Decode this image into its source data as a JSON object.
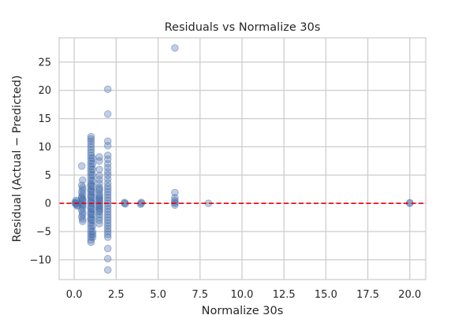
{
  "chart_data": {
    "type": "scatter",
    "title": "Residuals vs Normalize 30s",
    "xlabel": "Normalize 30s",
    "ylabel": "Residual (Actual − Predicted)",
    "xlim": [
      -0.9,
      20.95
    ],
    "ylim": [
      -13.5,
      29.3
    ],
    "xticks": [
      0,
      2.5,
      5,
      7.5,
      10,
      12.5,
      15,
      17.5,
      20
    ],
    "xtick_labels": [
      "0.0",
      "2.5",
      "5.0",
      "7.5",
      "10.0",
      "12.5",
      "15.0",
      "17.5",
      "20.0"
    ],
    "yticks": [
      -10,
      -5,
      0,
      5,
      10,
      15,
      20,
      25
    ],
    "ytick_labels": [
      "−10",
      "−5",
      "0",
      "5",
      "10",
      "15",
      "20",
      "25"
    ],
    "grid": true,
    "reference_line": {
      "y": 0,
      "style": "dashed",
      "color": "#e8000b"
    },
    "marker_color": "#4c72b0",
    "marker_alpha": 0.35,
    "points": {
      "x": [
        0.1,
        0.15,
        0.2,
        0.05,
        0.1,
        0.2,
        0.15,
        0.1,
        0.45,
        0.5,
        0.45,
        0.5,
        0.5,
        0.45,
        0.5,
        0.45,
        0.5,
        0.5,
        0.45,
        0.5,
        0.5,
        0.45,
        0.5,
        0.5,
        0.45,
        0.5,
        0.5,
        0.45,
        0.5,
        0.5,
        1.0,
        1.0,
        1.0,
        1.0,
        1.0,
        1.0,
        1.0,
        1.0,
        1.0,
        1.0,
        1.0,
        1.0,
        1.0,
        1.0,
        1.0,
        1.0,
        1.0,
        1.0,
        1.0,
        1.0,
        1.0,
        1.0,
        1.0,
        1.0,
        1.0,
        1.0,
        1.0,
        1.0,
        1.0,
        1.0,
        1.0,
        1.0,
        1.0,
        1.0,
        1.0,
        1.0,
        1.0,
        1.0,
        1.0,
        1.0,
        1.0,
        1.0,
        1.0,
        1.0,
        1.0,
        1.0,
        1.1,
        1.1,
        1.1,
        1.1,
        1.1,
        1.1,
        1.1,
        1.1,
        1.1,
        1.1,
        1.1,
        1.1,
        1.1,
        1.1,
        1.1,
        1.1,
        1.5,
        1.5,
        1.5,
        1.5,
        1.5,
        1.5,
        1.5,
        1.5,
        1.5,
        1.5,
        1.5,
        1.5,
        1.5,
        1.5,
        1.5,
        1.5,
        1.5,
        1.5,
        1.5,
        1.5,
        1.5,
        1.5,
        1.5,
        1.5,
        1.5,
        1.5,
        2.0,
        2.0,
        2.0,
        2.0,
        2.0,
        2.0,
        2.0,
        2.0,
        2.0,
        2.0,
        2.0,
        2.0,
        2.0,
        2.0,
        2.0,
        2.0,
        2.0,
        2.0,
        2.0,
        2.0,
        2.0,
        2.0,
        2.0,
        2.0,
        2.0,
        2.0,
        2.0,
        2.0,
        2.0,
        2.0,
        2.0,
        2.0,
        2.0,
        2.0,
        3.0,
        3.0,
        3.05,
        4.0,
        4.0,
        3.95,
        6.0,
        6.0,
        6.0,
        6.0,
        6.0,
        6.0,
        6.0,
        8.0,
        20.0,
        20.0
      ],
      "y": [
        0.0,
        0.3,
        -0.3,
        0.1,
        0.5,
        -0.5,
        0.0,
        -0.2,
        6.6,
        4.1,
        3.2,
        2.8,
        2.4,
        2.0,
        1.6,
        1.2,
        0.8,
        0.4,
        0.0,
        -0.4,
        -0.8,
        -1.2,
        -1.6,
        -2.0,
        -2.4,
        -2.8,
        -3.2,
        1.0,
        -0.2,
        0.6,
        11.8,
        11.4,
        11.0,
        10.5,
        10.0,
        9.5,
        9.0,
        8.5,
        8.0,
        7.5,
        7.0,
        6.5,
        6.0,
        5.5,
        5.0,
        4.5,
        4.0,
        3.5,
        3.0,
        2.5,
        2.0,
        1.5,
        1.0,
        0.5,
        0.0,
        -0.5,
        -1.0,
        -1.5,
        -2.0,
        -2.5,
        -3.0,
        -3.5,
        -4.0,
        -4.5,
        -5.0,
        -5.5,
        -6.0,
        -6.5,
        -6.9,
        3.2,
        2.2,
        1.2,
        0.2,
        -0.8,
        -1.8,
        -2.8,
        8.0,
        7.0,
        6.0,
        5.0,
        4.0,
        3.0,
        2.0,
        1.0,
        0.0,
        -1.0,
        -2.0,
        -3.0,
        -4.0,
        -5.0,
        -5.5,
        -6.0,
        8.2,
        7.5,
        6.0,
        4.9,
        4.2,
        3.5,
        2.8,
        2.2,
        1.6,
        1.0,
        0.5,
        0.0,
        -0.5,
        -1.0,
        -1.5,
        -2.0,
        -2.5,
        -3.0,
        -3.6,
        0.3,
        -0.3,
        0.8,
        -0.8,
        1.3,
        -1.3,
        2.5,
        20.2,
        15.8,
        11.0,
        10.2,
        8.5,
        7.8,
        7.0,
        6.3,
        5.6,
        5.0,
        4.3,
        3.6,
        3.0,
        2.5,
        2.0,
        1.5,
        1.0,
        0.5,
        0.0,
        -0.5,
        -1.0,
        -1.5,
        -2.0,
        -2.5,
        -3.0,
        -3.5,
        -4.0,
        -4.5,
        -5.0,
        -5.5,
        -6.0,
        -8.0,
        -9.8,
        -11.8,
        0.0,
        0.15,
        -0.1,
        0.0,
        0.15,
        -0.15,
        27.5,
        1.9,
        1.0,
        0.5,
        0.0,
        -0.3,
        0.2,
        0.0,
        0.0,
        0.1
      ]
    }
  }
}
